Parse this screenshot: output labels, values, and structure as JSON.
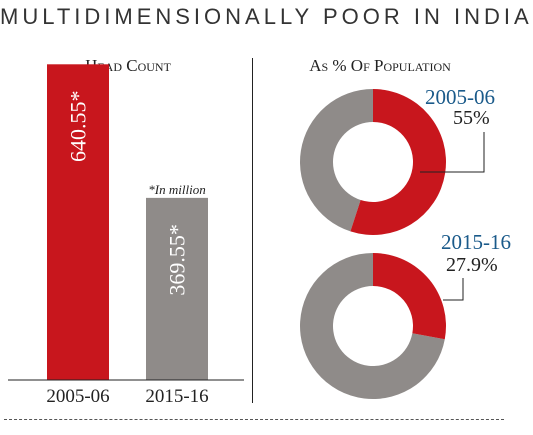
{
  "title": "MULTIDIMENSIONALLY POOR IN INDIA",
  "chart_data": [
    {
      "type": "bar",
      "title": "Head Count",
      "categories": [
        "2005-06",
        "2015-16"
      ],
      "values": [
        640.55,
        369.55
      ],
      "value_labels": [
        "640.55*",
        "369.55*"
      ],
      "note": "*In million",
      "colors": [
        "#c8161d",
        "#8f8b89"
      ],
      "ylim": [
        0,
        700
      ]
    },
    {
      "type": "pie",
      "title": "As % Of Population",
      "charts": [
        {
          "label": "2005-06",
          "value": 55,
          "value_label": "55%"
        },
        {
          "label": "2015-16",
          "value": 27.9,
          "value_label": "27.9%"
        }
      ],
      "colors": {
        "highlight": "#c8161d",
        "rest": "#8f8b89"
      }
    }
  ]
}
